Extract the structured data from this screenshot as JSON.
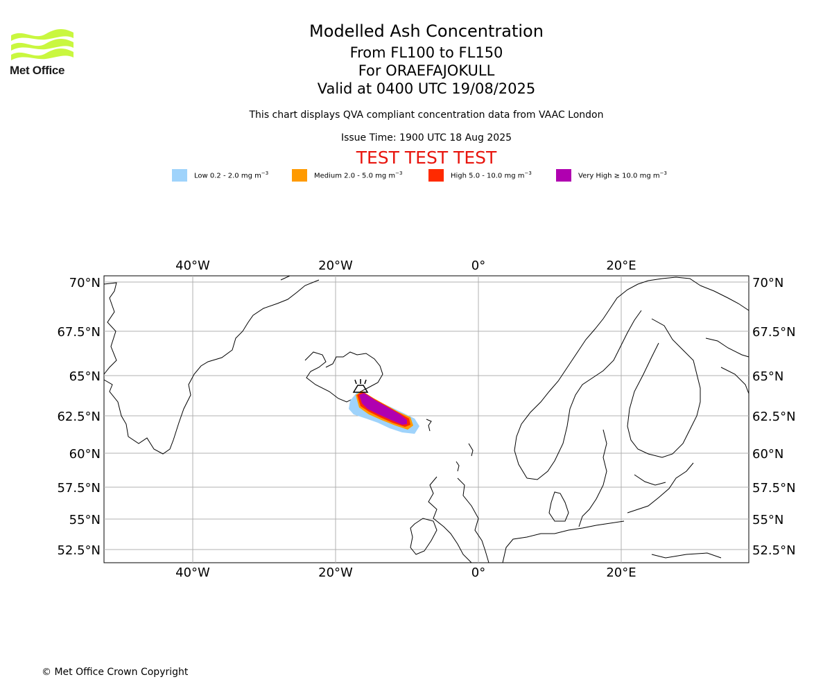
{
  "header": {
    "logo_text": "Met Office",
    "title": "Modelled Ash Concentration",
    "level_range": "From FL100 to FL150",
    "volcano": "For ORAEFAJOKULL",
    "valid_time": "Valid at 0400 UTC 19/08/2025",
    "description": "This chart displays QVA compliant concentration data from VAAC London",
    "issue_time": "Issue Time: 1900 UTC 18 Aug 2025",
    "test_banner": "TEST TEST TEST"
  },
  "legend": [
    {
      "label": "Low 0.2 - 2.0 mg m",
      "unit_exp": "−3",
      "color": "#9fd3fb"
    },
    {
      "label": "Medium 2.0 - 5.0 mg m",
      "unit_exp": "−3",
      "color": "#ff9a00"
    },
    {
      "label": "High 5.0 - 10.0 mg m",
      "unit_exp": "−3",
      "color": "#ff2a00"
    },
    {
      "label": "Very High  ≥  10.0 mg m",
      "unit_exp": "−3",
      "color": "#b000b0"
    }
  ],
  "map": {
    "lon_ticks": [
      "40°W",
      "20°W",
      "0°",
      "20°E"
    ],
    "lat_ticks": [
      "70°N",
      "67.5°N",
      "65°N",
      "62.5°N",
      "60°N",
      "57.5°N",
      "55°N",
      "52.5°N"
    ],
    "volcano_marker": "volcano-icon"
  },
  "footer": {
    "copyright": "© Met Office Crown Copyright"
  },
  "colors": {
    "test_banner": "#e8150e",
    "logo": "#c9f73f",
    "grid": "#b0b0b0"
  }
}
